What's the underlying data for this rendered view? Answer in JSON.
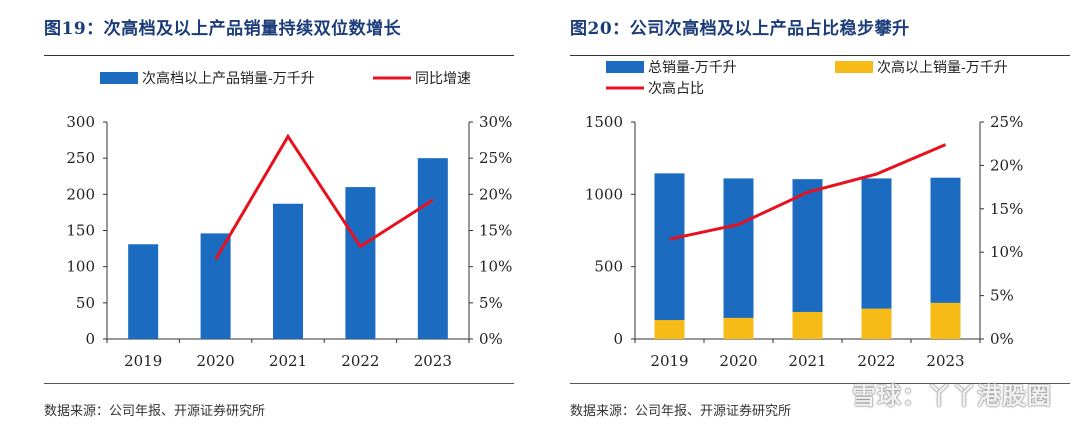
{
  "colors": {
    "blue": "#1b6cc1",
    "yellow": "#f7bb18",
    "red": "#e8101c",
    "title": "#1c3d7a"
  },
  "watermark": "雪球：丫丫港股圈",
  "charts": [
    {
      "title": "图19：次高档及以上产品销量持续双位数增长",
      "source": "数据来源：公司年报、开源证券研究所",
      "chart_data": {
        "type": "bar+line",
        "categories": [
          "2019",
          "2020",
          "2021",
          "2022",
          "2023"
        ],
        "series": [
          {
            "name": "次高档以上产品销量-万千升",
            "type": "bar",
            "axis": "left",
            "color": "#1b6cc1",
            "values": [
              131,
              146,
              187,
              210,
              250
            ]
          },
          {
            "name": "同比增速",
            "type": "line",
            "axis": "right",
            "color": "#e8101c",
            "values": [
              null,
              11.0,
              28.0,
              12.8,
              19.2
            ]
          }
        ],
        "ylim": [
          0,
          300
        ],
        "yticks": [
          "0",
          "50",
          "100",
          "150",
          "200",
          "250",
          "300"
        ],
        "y2lim": [
          0,
          30
        ],
        "y2ticks": [
          "0%",
          "5%",
          "10%",
          "15%",
          "20%",
          "25%",
          "30%"
        ],
        "legend": "top",
        "grid": false
      }
    },
    {
      "title": "图20：公司次高档及以上产品占比稳步攀升",
      "source": "数据来源：公司年报、开源证券研究所",
      "chart_data": {
        "type": "bar+line",
        "categories": [
          "2019",
          "2020",
          "2021",
          "2022",
          "2023"
        ],
        "series": [
          {
            "name": "总销量-万千升",
            "type": "bar",
            "axis": "left",
            "color": "#1b6cc1",
            "values": [
              1145,
              1110,
              1105,
              1110,
              1115
            ]
          },
          {
            "name": "次高以上销量-万千升",
            "type": "bar",
            "axis": "left",
            "color": "#f7bb18",
            "values": [
              131,
              146,
              187,
              210,
              250
            ]
          },
          {
            "name": "次高占比",
            "type": "line",
            "axis": "right",
            "color": "#e8101c",
            "values": [
              11.5,
              13.2,
              16.9,
              19.0,
              22.4
            ]
          }
        ],
        "ylim": [
          0,
          1500
        ],
        "yticks": [
          "0",
          "500",
          "1000",
          "1500"
        ],
        "y2lim": [
          0,
          25
        ],
        "y2ticks": [
          "0%",
          "5%",
          "10%",
          "15%",
          "20%",
          "25%"
        ],
        "legend": "top",
        "grid": false
      }
    }
  ]
}
